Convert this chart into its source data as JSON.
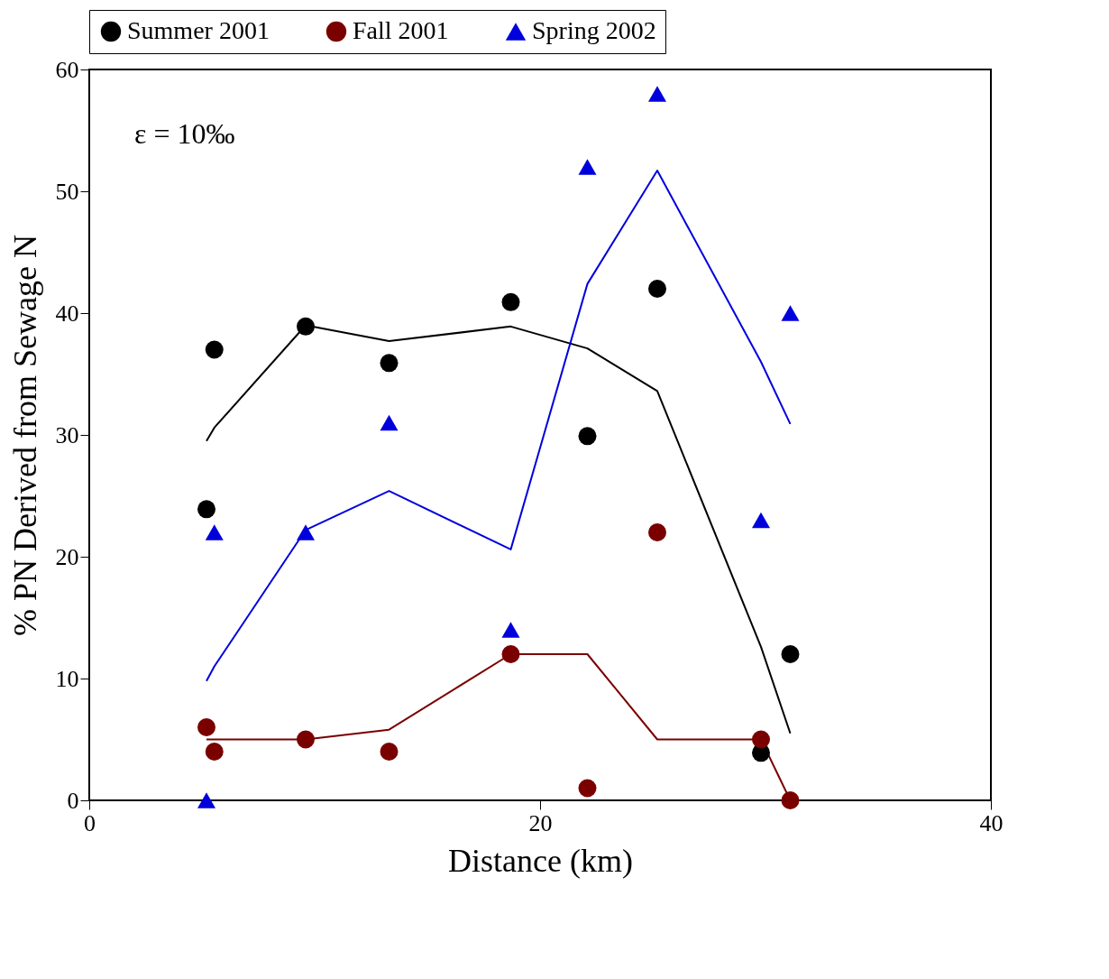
{
  "chart_data": {
    "type": "scatter",
    "xlabel": "Distance (km)",
    "ylabel": "% PN Derived from Sewage N",
    "annotations": [
      "ε = 10‰"
    ],
    "xlim": [
      0,
      40
    ],
    "xticks": [
      0,
      20,
      40
    ],
    "ylim": [
      0,
      60
    ],
    "yticks": [
      0,
      10,
      20,
      30,
      40,
      50,
      60
    ],
    "grid": false,
    "legend": "top",
    "series": [
      {
        "name": "Summer 2001",
        "marker": "circle",
        "color": "#000000",
        "x": [
          5.2,
          5.55,
          9.6,
          13.3,
          18.7,
          22.1,
          25.2,
          29.8,
          31.1
        ],
        "values": [
          23.9,
          37,
          38.9,
          35.9,
          40.9,
          29.9,
          42,
          3.9,
          12
        ]
      },
      {
        "name": "Fall 2001",
        "marker": "circle",
        "color": "#7a0000",
        "x": [
          5.2,
          5.55,
          9.6,
          13.3,
          18.7,
          22.1,
          25.2,
          29.8,
          31.1
        ],
        "values": [
          6,
          4,
          5,
          4,
          12,
          1,
          22,
          5,
          0
        ]
      },
      {
        "name": "Spring 2002",
        "marker": "triangle",
        "color": "#0000dd",
        "x": [
          5.2,
          5.55,
          9.6,
          13.3,
          18.7,
          22.1,
          25.2,
          29.8,
          31.1
        ],
        "values": [
          0,
          22,
          22,
          31,
          14,
          52,
          58,
          23,
          40
        ]
      },
      {
        "type": "line",
        "color": "#000000",
        "x": [
          5.2,
          5.55,
          9.6,
          13.3,
          18.7,
          22.1,
          25.2,
          29.8,
          31.1
        ],
        "values": [
          29.5,
          30.6,
          39,
          37.7,
          38.9,
          37.1,
          33.6,
          12.6,
          5.5
        ]
      },
      {
        "type": "line",
        "color": "#7a0000",
        "x": [
          5.2,
          5.55,
          9.6,
          13.3,
          18.7,
          22.1,
          25.2,
          29.8,
          31.1
        ],
        "values": [
          5,
          5,
          5,
          5.8,
          12,
          12,
          5,
          5,
          0
        ]
      },
      {
        "type": "line",
        "color": "#0000dd",
        "x": [
          5.2,
          5.55,
          9.6,
          13.3,
          18.7,
          22.1,
          25.2,
          29.8,
          31.1
        ],
        "values": [
          9.8,
          11,
          22.2,
          25.4,
          20.6,
          42.4,
          51.7,
          36,
          30.9
        ]
      }
    ]
  }
}
